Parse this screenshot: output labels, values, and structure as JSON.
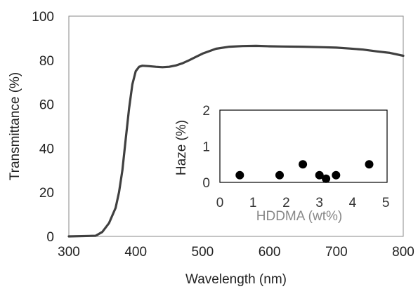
{
  "chart_data": [
    {
      "type": "line",
      "xlabel": "Wavelength (nm)",
      "ylabel": "Transmittance (%)",
      "xlim": [
        300,
        800
      ],
      "ylim": [
        0,
        100
      ],
      "xticks": [
        "300",
        "400",
        "500",
        "600",
        "700",
        "800"
      ],
      "yticks": [
        "0",
        "20",
        "40",
        "60",
        "80",
        "100"
      ],
      "grid": false,
      "line_color": "#404040",
      "series": [
        {
          "x": [
            300,
            340,
            350,
            360,
            370,
            375,
            380,
            385,
            390,
            395,
            400,
            405,
            410,
            420,
            430,
            440,
            450,
            460,
            470,
            480,
            490,
            500,
            520,
            540,
            560,
            580,
            600,
            620,
            650,
            680,
            700,
            720,
            740,
            760,
            780,
            800
          ],
          "y": [
            0,
            0.3,
            2,
            6,
            13,
            20,
            30,
            44,
            58,
            69,
            75,
            77,
            77.5,
            77.3,
            77,
            76.8,
            77,
            77.6,
            78.6,
            80,
            81.5,
            83,
            85.2,
            86.1,
            86.4,
            86.5,
            86.3,
            86.2,
            86.1,
            85.9,
            85.7,
            85.3,
            84.8,
            84,
            83.3,
            82
          ]
        }
      ]
    },
    {
      "type": "scatter",
      "xlabel": "HDDMA (wt%)",
      "ylabel": "Haze (%)",
      "xlim": [
        0,
        5
      ],
      "ylim": [
        0,
        2
      ],
      "xticks": [
        "0",
        "1",
        "2",
        "3",
        "4",
        "5"
      ],
      "yticks": [
        "0",
        "1",
        "2"
      ],
      "marker_color": "#000000",
      "series": [
        {
          "x": [
            0.6,
            1.8,
            2.5,
            3.0,
            3.2,
            3.5,
            4.5
          ],
          "y": [
            0.2,
            0.2,
            0.5,
            0.2,
            0.1,
            0.2,
            0.5
          ]
        }
      ]
    }
  ]
}
